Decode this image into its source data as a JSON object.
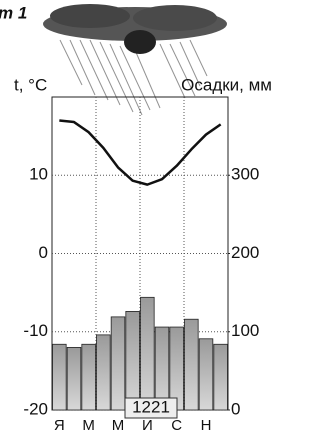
{
  "chart_data": {
    "type": "climatogram",
    "title": "т 1",
    "y_label": "t, °C",
    "y2_label": "Осадки, мм",
    "categories": [
      "Я",
      null,
      "М",
      null,
      "М",
      null,
      "И",
      null,
      "С",
      null,
      "Н",
      null
    ],
    "series": [
      {
        "type": "bar",
        "axis": "y2",
        "color": "#b5b5b5",
        "values": [
          84,
          80,
          84,
          96,
          119,
          126,
          144,
          106,
          106,
          116,
          91,
          84
        ]
      },
      {
        "type": "line",
        "color": "#111111",
        "values": [
          17,
          16.8,
          15.5,
          13.5,
          11,
          9.3,
          8.8,
          9.5,
          11.2,
          13.3,
          15.2,
          16.5
        ]
      }
    ],
    "ylim": [
      -20,
      20
    ],
    "yticks": [
      -20,
      -10,
      0,
      10
    ],
    "y2lim": [
      0,
      400
    ],
    "y2ticks": [
      0,
      100,
      200,
      300
    ],
    "annotation": "1221",
    "grid": true
  }
}
